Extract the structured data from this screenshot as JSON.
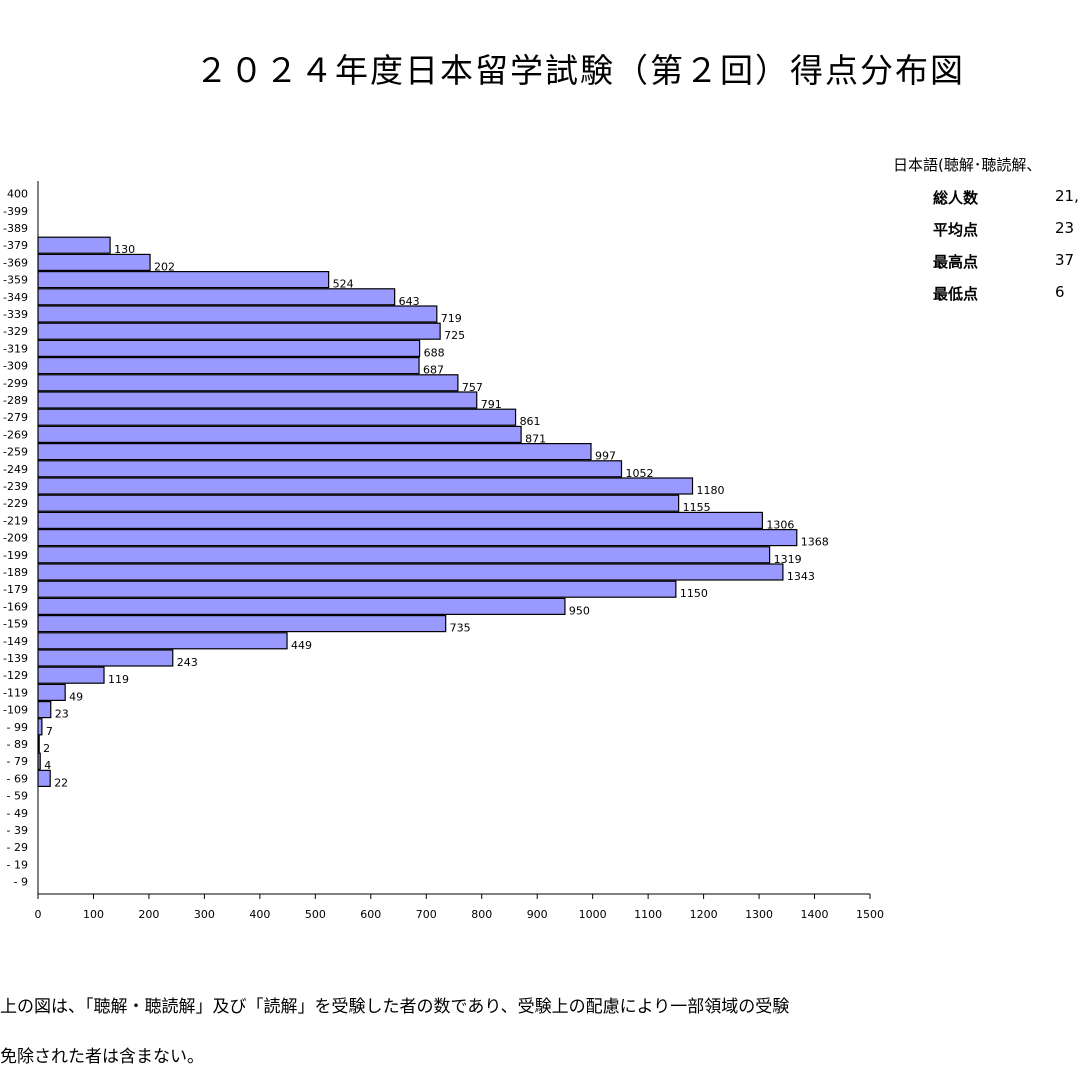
{
  "title": "２０２４年度日本留学試験（第２回）得点分布図",
  "summary": {
    "heading": "日本語(聴解･聴読解、",
    "rows": [
      {
        "label": "総人数",
        "value": "21,"
      },
      {
        "label": "平均点",
        "value": "23"
      },
      {
        "label": "最高点",
        "value": "37"
      },
      {
        "label": "最低点",
        "value": "6"
      }
    ]
  },
  "note": {
    "line1": "上の図は、「聴解・聴読解」及び「読解」を受験した者の数であり、受験上の配慮により一部領域の受験",
    "line2": "免除された者は含まない。"
  },
  "chart_data": {
    "type": "bar",
    "orientation": "horizontal",
    "title": "２０２４年度日本留学試験（第２回）得点分布図",
    "xlabel": "",
    "ylabel": "",
    "xlim": [
      0,
      1500
    ],
    "xticks": [
      0,
      100,
      200,
      300,
      400,
      500,
      600,
      700,
      800,
      900,
      1000,
      1100,
      1200,
      1300,
      1400,
      1500
    ],
    "grid": false,
    "bar_color": "#9999ff",
    "categories": [
      "400",
      "-399",
      "-389",
      "-379",
      "-369",
      "-359",
      "-349",
      "-339",
      "-329",
      "-319",
      "-309",
      "-299",
      "-289",
      "-279",
      "-269",
      "-259",
      "-249",
      "-239",
      "-229",
      "-219",
      "-209",
      "-199",
      "-189",
      "-179",
      "-169",
      "-159",
      "-149",
      "-139",
      "-129",
      "-119",
      "-109",
      "- 99",
      "- 89",
      "- 79",
      "- 69",
      "- 59",
      "- 49",
      "- 39",
      "- 29",
      "- 19",
      "- 9"
    ],
    "values": [
      0,
      0,
      0,
      130,
      202,
      524,
      643,
      719,
      725,
      688,
      687,
      757,
      791,
      861,
      871,
      997,
      1052,
      1180,
      1155,
      1306,
      1368,
      1319,
      1343,
      1150,
      950,
      735,
      449,
      243,
      119,
      49,
      23,
      7,
      2,
      4,
      22,
      0,
      0,
      0,
      0,
      0,
      0
    ],
    "value_labels": [
      "",
      "",
      "",
      "130",
      "202",
      "524",
      "643",
      "719",
      "725",
      "688",
      "687",
      "757",
      "791",
      "861",
      "871",
      "997",
      "1052",
      "1180",
      "1155",
      "1306",
      "1368",
      "1319",
      "1343",
      "1150",
      "950",
      "735",
      "449",
      "243",
      "119",
      "49",
      "23",
      "7",
      "2",
      "4",
      "22",
      "",
      "",
      "",
      "",
      "",
      ""
    ]
  }
}
